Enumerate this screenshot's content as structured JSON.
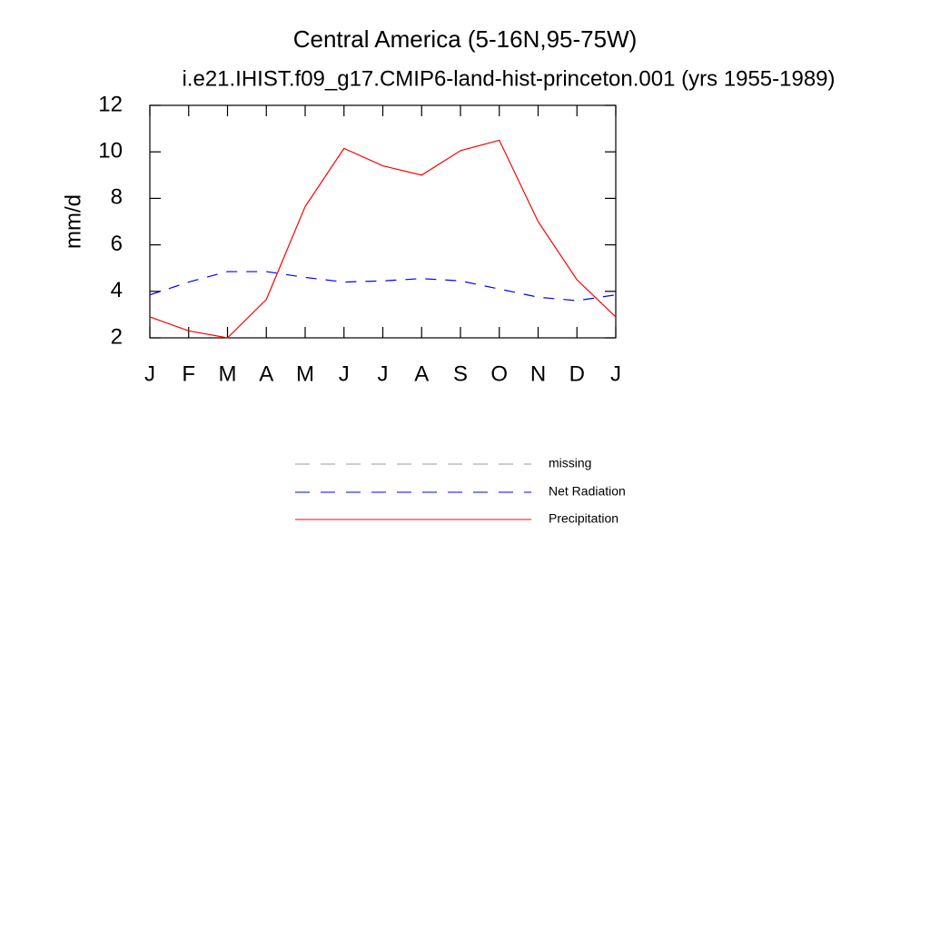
{
  "chart_data": {
    "type": "line",
    "title": "Central America (5-16N,95-75W)",
    "subtitle": "i.e21.IHIST.f09_g17.CMIP6-land-hist-princeton.001 (yrs 1955-1989)",
    "y_label": "mm/d",
    "categories": [
      "J",
      "F",
      "M",
      "A",
      "M",
      "J",
      "J",
      "A",
      "S",
      "O",
      "N",
      "D",
      "J"
    ],
    "ylim": [
      2,
      12
    ],
    "yticks": [
      2,
      4,
      6,
      8,
      10,
      12
    ],
    "series": [
      {
        "name": "missing",
        "color": "#999999",
        "dashed": true,
        "values": [
          null,
          null,
          null,
          null,
          null,
          null,
          null,
          null,
          null,
          null,
          null,
          null,
          null
        ]
      },
      {
        "name": "Net Radiation",
        "color": "#0000ff",
        "dashed": true,
        "values": [
          3.85,
          4.4,
          4.85,
          4.85,
          4.6,
          4.4,
          4.45,
          4.55,
          4.45,
          4.1,
          3.75,
          3.6,
          3.85
        ]
      },
      {
        "name": "Precipitation",
        "color": "#ff0000",
        "dashed": false,
        "values": [
          2.9,
          2.3,
          2.0,
          3.65,
          7.65,
          10.15,
          9.4,
          9.0,
          10.05,
          10.5,
          7.0,
          4.5,
          2.9
        ]
      }
    ]
  }
}
